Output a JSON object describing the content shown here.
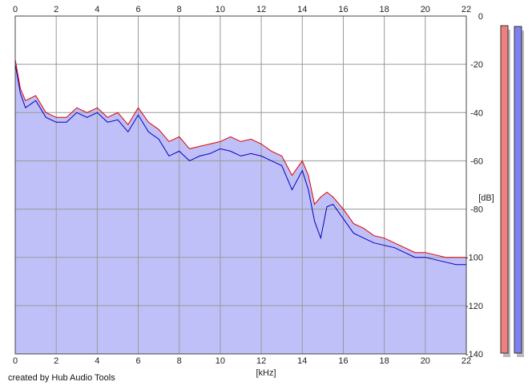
{
  "app": {
    "credit": "created by Hub Audio Tools"
  },
  "chart_data": {
    "type": "area",
    "xlabel": "[kHz]",
    "ylabel": "[dB]",
    "xlim": [
      0,
      22
    ],
    "ylim": [
      -140,
      0
    ],
    "x_ticks": [
      0,
      2,
      4,
      6,
      8,
      10,
      12,
      14,
      16,
      18,
      20,
      22
    ],
    "y_ticks": [
      0,
      -20,
      -40,
      -60,
      -80,
      -100,
      -120,
      -140
    ],
    "grid": true,
    "fill_color": "#c0c0f8",
    "series": [
      {
        "color": "#e00000",
        "x": [
          0,
          0.25,
          0.5,
          1,
          1.5,
          2,
          2.5,
          3,
          3.5,
          4,
          4.5,
          5,
          5.5,
          6,
          6.5,
          7,
          7.5,
          8,
          8.5,
          9,
          9.5,
          10,
          10.5,
          11,
          11.5,
          12,
          12.5,
          13,
          13.5,
          14,
          14.3,
          14.6,
          14.9,
          15.2,
          15.5,
          16,
          16.5,
          17,
          17.5,
          18,
          18.5,
          19,
          19.5,
          20,
          20.5,
          21,
          21.5,
          22
        ],
        "values": [
          -18,
          -30,
          -35,
          -33,
          -40,
          -42,
          -42,
          -38,
          -40,
          -38,
          -42,
          -40,
          -45,
          -38,
          -44,
          -47,
          -52,
          -50,
          -55,
          -54,
          -53,
          -52,
          -50,
          -52,
          -51,
          -53,
          -56,
          -58,
          -66,
          -60,
          -66,
          -78,
          -75,
          -73,
          -75,
          -80,
          -86,
          -88,
          -91,
          -92,
          -94,
          -96,
          -98,
          -98,
          -99,
          -100,
          -100,
          -100
        ]
      },
      {
        "color": "#0000c0",
        "x": [
          0,
          0.25,
          0.5,
          1,
          1.5,
          2,
          2.5,
          3,
          3.5,
          4,
          4.5,
          5,
          5.5,
          6,
          6.5,
          7,
          7.5,
          8,
          8.5,
          9,
          9.5,
          10,
          10.5,
          11,
          11.5,
          12,
          12.5,
          13,
          13.5,
          14,
          14.3,
          14.6,
          14.9,
          15.2,
          15.5,
          16,
          16.5,
          17,
          17.5,
          18,
          18.5,
          19,
          19.5,
          20,
          20.5,
          21,
          21.5,
          22
        ],
        "values": [
          -20,
          -32,
          -38,
          -35,
          -42,
          -44,
          -44,
          -40,
          -42,
          -40,
          -44,
          -43,
          -48,
          -41,
          -48,
          -51,
          -58,
          -56,
          -60,
          -58,
          -57,
          -55,
          -56,
          -58,
          -57,
          -58,
          -60,
          -62,
          -72,
          -64,
          -72,
          -85,
          -92,
          -79,
          -78,
          -84,
          -90,
          -92,
          -94,
          -95,
          -96,
          -98,
          -100,
          -100,
          -101,
          -102,
          -103,
          -103
        ]
      }
    ],
    "level_meters": [
      {
        "color": "#f08080",
        "level_db": -4
      },
      {
        "color": "#8080f0",
        "level_db": -6
      }
    ]
  }
}
